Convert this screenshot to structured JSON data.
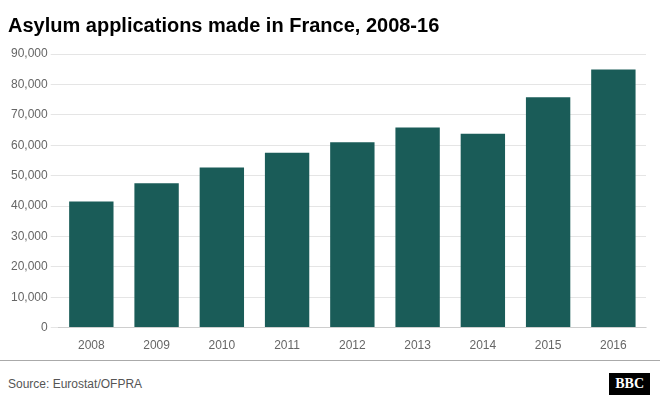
{
  "chart_data": {
    "type": "bar",
    "title": "Asylum applications made in France, 2008-16",
    "categories": [
      "2008",
      "2009",
      "2010",
      "2011",
      "2012",
      "2013",
      "2014",
      "2015",
      "2016"
    ],
    "values": [
      41500,
      47500,
      52700,
      57500,
      61000,
      65800,
      63800,
      75750,
      84900
    ],
    "color": "#1a5c58",
    "ylim": [
      0,
      90000
    ],
    "yticks": [
      0,
      {
        "value": 10000,
        "label": "10,000"
      },
      {
        "value": 20000,
        "label": "20,000"
      },
      {
        "value": 30000,
        "label": "30,000"
      },
      {
        "value": 40000,
        "label": "40,000"
      },
      {
        "value": 50000,
        "label": "50,000"
      },
      {
        "value": 60000,
        "label": "60,000"
      },
      {
        "value": 70000,
        "label": "70,000"
      },
      {
        "value": 80000,
        "label": "80,000"
      },
      {
        "value": 90000,
        "label": "90,000"
      }
    ],
    "grid": true,
    "annotations": [
      "Source: Eurostat/OFPRA",
      "BBC"
    ]
  }
}
